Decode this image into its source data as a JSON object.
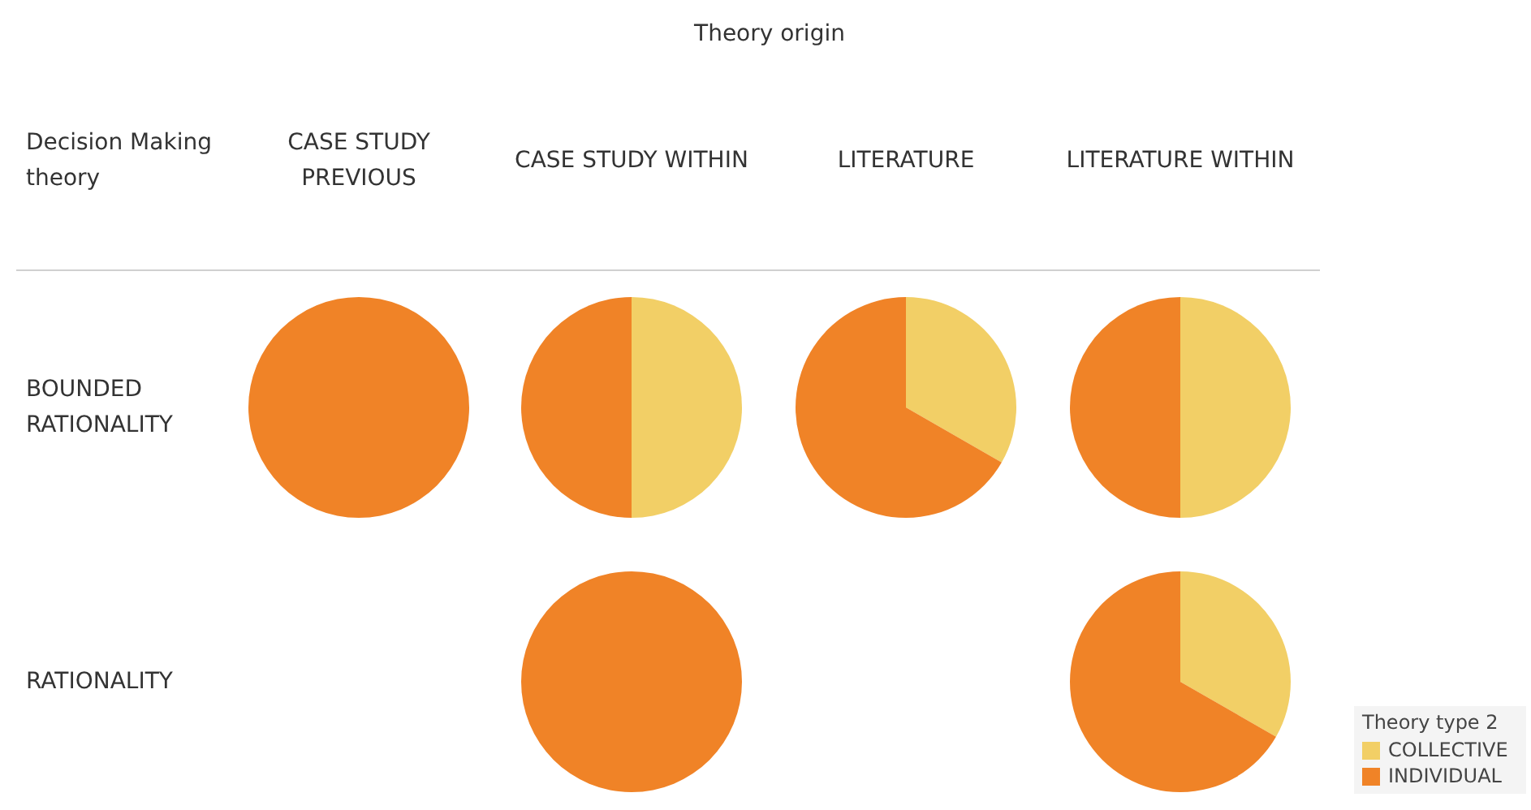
{
  "chart_data": [
    {
      "type": "other",
      "title": "Theory origin",
      "annotations": [
        "Decision Making theory",
        "CASE STUDY PREVIOUS",
        "CASE STUDY WITHIN",
        "LITERATURE",
        "LITERATURE WITHIN",
        "BOUNDED RATIONALITY",
        "RATIONALITY"
      ]
    },
    {
      "type": "pie",
      "categories": [
        null,
        null
      ],
      "values": [
        0,
        100
      ],
      "colors": [
        "#f2cf66",
        "#f08327"
      ]
    },
    {
      "type": "pie",
      "categories": [
        null,
        null
      ],
      "values": [
        50,
        50
      ],
      "colors": [
        "#f2cf66",
        "#f08327"
      ]
    },
    {
      "type": "pie",
      "categories": [
        null,
        null
      ],
      "values": [
        33.3,
        66.7
      ],
      "colors": [
        "#f2cf66",
        "#f08327"
      ]
    },
    {
      "type": "pie",
      "categories": [
        null,
        null
      ],
      "values": [
        50,
        50
      ],
      "colors": [
        "#f2cf66",
        "#f08327"
      ]
    },
    {
      "type": "pie",
      "categories": [
        null,
        null
      ],
      "values": [
        0,
        100
      ],
      "colors": [
        "#f2cf66",
        "#f08327"
      ]
    },
    {
      "type": "pie",
      "categories": [
        "COLLECTIVE",
        "INDIVIDUAL"
      ],
      "values": [
        33.3,
        66.7
      ],
      "colors": [
        "#f2cf66",
        "#f08327"
      ],
      "legend": "bottom right",
      "legend_title": "Theory type 2"
    }
  ]
}
